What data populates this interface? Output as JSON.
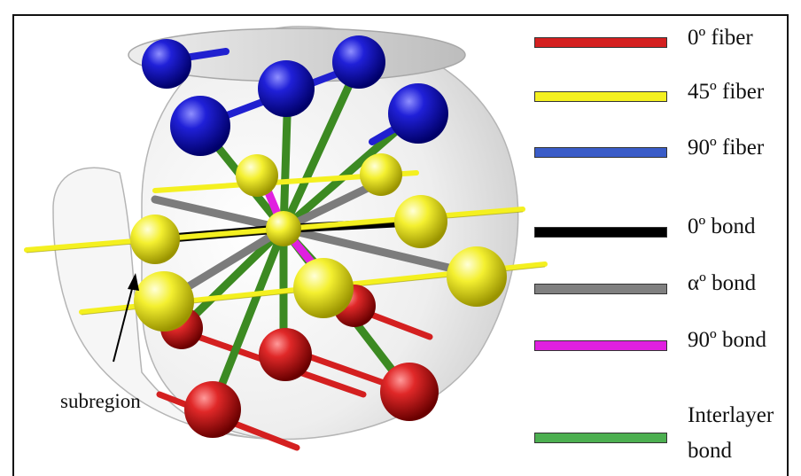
{
  "legend": {
    "fiber_0": "0º fiber",
    "fiber_45": "45º fiber",
    "fiber_90": "90º fiber",
    "bond_0": "0º bond",
    "bond_alpha": "αº bond",
    "bond_90": "90º bond",
    "interlayer_line1": "Interlayer",
    "interlayer_line2": "bond"
  },
  "annotation": {
    "subregion": "subregion"
  },
  "colors": {
    "fiber_0": "#d42020",
    "fiber_45": "#f4f020",
    "fiber_90": "#3a5cc8",
    "bond_0": "#000000",
    "bond_alpha": "#808080",
    "bond_90": "#e020e0",
    "interlayer": "#4caf50"
  }
}
